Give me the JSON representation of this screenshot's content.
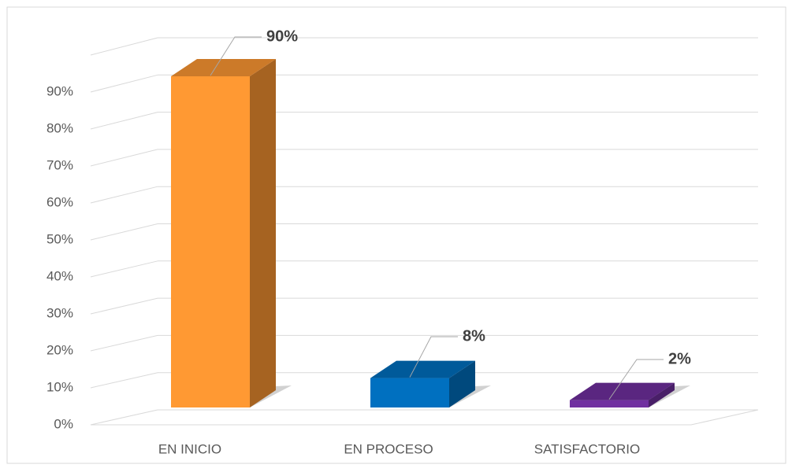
{
  "chart_data": {
    "type": "bar3d",
    "categories": [
      "EN INICIO",
      "EN PROCESO",
      "SATISFACTORIO"
    ],
    "values": [
      90,
      8,
      2
    ],
    "value_labels": [
      "90%",
      "8%",
      "2%"
    ],
    "colors": [
      "#FF9933",
      "#0070C0",
      "#7030A0"
    ],
    "ylim": [
      0,
      100
    ],
    "yticks": [
      {
        "value": 0,
        "label": "0%"
      },
      {
        "value": 10,
        "label": "10%"
      },
      {
        "value": 20,
        "label": "20%"
      },
      {
        "value": 30,
        "label": "30%"
      },
      {
        "value": 40,
        "label": "40%"
      },
      {
        "value": 50,
        "label": "50%"
      },
      {
        "value": 60,
        "label": "60%"
      },
      {
        "value": 70,
        "label": "70%"
      },
      {
        "value": 80,
        "label": "80%"
      },
      {
        "value": 90,
        "label": "90%"
      }
    ],
    "grid": true
  }
}
